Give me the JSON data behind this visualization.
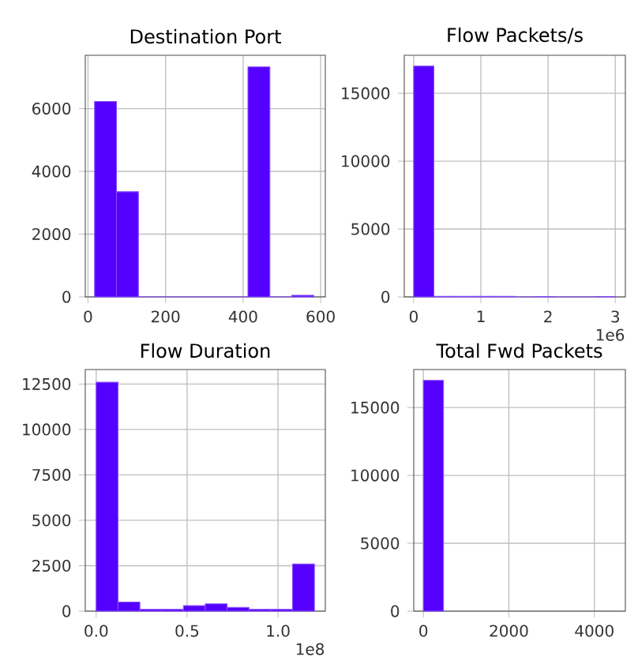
{
  "chart_data": [
    {
      "type": "histogram",
      "title": "Destination Port",
      "bins": [
        17,
        73.5,
        130,
        186.5,
        243,
        299.5,
        356,
        412.5,
        469,
        525.5,
        582
      ],
      "values": [
        6230,
        3350,
        0,
        0,
        0,
        0,
        0,
        7330,
        0,
        50
      ],
      "color": "#5500ff",
      "xlim": [
        -7,
        612
      ],
      "ylim": [
        0,
        7700
      ],
      "xticks": [
        0,
        200,
        400,
        600
      ],
      "yticks": [
        0,
        2000,
        4000,
        6000
      ],
      "grid": true
    },
    {
      "type": "histogram",
      "title": "Flow Packets/s",
      "bins": [
        0,
        0.3,
        0.6,
        0.9,
        1.2,
        1.5,
        1.8,
        2.1,
        2.4,
        2.7,
        3.0
      ],
      "values": [
        17000,
        40,
        40,
        40,
        40,
        0,
        20,
        0,
        0,
        20
      ],
      "color": "#5500ff",
      "xlim": [
        -0.14,
        3.15
      ],
      "ylim": [
        0,
        17800
      ],
      "xticks": [
        0,
        1,
        2,
        3
      ],
      "yticks": [
        0,
        5000,
        10000,
        15000
      ],
      "grid": true,
      "annotations": [
        "1e6"
      ]
    },
    {
      "type": "histogram",
      "title": "Flow Duration",
      "bins": [
        0,
        0.12,
        0.24,
        0.36,
        0.48,
        0.6,
        0.72,
        0.84,
        0.96,
        1.08,
        1.2
      ],
      "values": [
        12600,
        500,
        100,
        100,
        300,
        400,
        200,
        100,
        100,
        2600
      ],
      "color": "#5500ff",
      "xlim": [
        -0.06,
        1.26
      ],
      "ylim": [
        0,
        13300
      ],
      "xticks": [
        {
          "value": 0,
          "label": "0.0"
        },
        {
          "value": 0.5,
          "label": "0.5"
        },
        {
          "value": 1,
          "label": "1.0"
        }
      ],
      "yticks": [
        0,
        2500,
        5000,
        7500,
        10000,
        12500
      ],
      "grid": true,
      "annotations": [
        "1e8"
      ]
    },
    {
      "type": "histogram",
      "title": "Total Fwd Packets",
      "bins": [
        0,
        470
      ],
      "values": [
        17000
      ],
      "color": "#5500ff",
      "xlim": [
        -225,
        4725
      ],
      "ylim": [
        0,
        17800
      ],
      "xticks": [
        0,
        2000,
        4000
      ],
      "yticks": [
        0,
        5000,
        10000,
        15000
      ],
      "grid": true
    }
  ]
}
